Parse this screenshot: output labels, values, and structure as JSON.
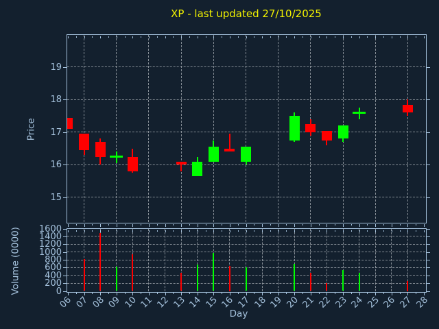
{
  "colors": {
    "background": "#13202e",
    "axis": "#a6c3de",
    "grid": "#9aa0a8",
    "up": "#00ff00",
    "down": "#ff0000",
    "title": "#f2f200"
  },
  "chart_data": {
    "type": "candlestick",
    "title": "XP - last updated 27/10/2025",
    "xlabel": "Day",
    "xlim": [
      5.94,
      28.06
    ],
    "xticks": [
      "06",
      "07",
      "08",
      "09",
      "10",
      "11",
      "12",
      "13",
      "14",
      "15",
      "16",
      "17",
      "18",
      "19",
      "20",
      "21",
      "22",
      "23",
      "24",
      "25",
      "26",
      "27",
      "28"
    ],
    "grid": true,
    "legend": "none",
    "panels": [
      {
        "ylabel": "Price",
        "ylim": [
          14.25,
          20.0
        ],
        "yticks": [
          15,
          16,
          17,
          18,
          19
        ],
        "grid_x_days": [
          7,
          9,
          11,
          13,
          15,
          17,
          19,
          21,
          23,
          25,
          27
        ]
      },
      {
        "ylabel": "Volume (0000)",
        "ylim": [
          0,
          1600
        ],
        "yticks": [
          1600,
          1400,
          1200,
          1000,
          800,
          600,
          400,
          200,
          0
        ],
        "grid_x_days": [
          7,
          8,
          9,
          10,
          11,
          12,
          13,
          14,
          15,
          16,
          17,
          18,
          19,
          20,
          21,
          22,
          23,
          24,
          25,
          26,
          27
        ]
      }
    ],
    "candles": [
      {
        "day": 6,
        "open": 17.45,
        "high": 17.45,
        "low": 17.1,
        "close": 17.1,
        "volume": null
      },
      {
        "day": 7,
        "open": 16.95,
        "high": 16.95,
        "low": 16.3,
        "close": 16.45,
        "volume": 820
      },
      {
        "day": 8,
        "open": 16.7,
        "high": 16.8,
        "low": 16.0,
        "close": 16.25,
        "volume": 1480
      },
      {
        "day": 9,
        "open": 16.25,
        "high": 16.4,
        "low": 16.05,
        "close": 16.25,
        "volume": 620
      },
      {
        "day": 10,
        "open": 16.25,
        "high": 16.5,
        "low": 15.75,
        "close": 15.8,
        "volume": 940
      },
      {
        "day": 13,
        "open": 16.1,
        "high": 16.1,
        "low": 15.8,
        "close": 16.0,
        "volume": 460
      },
      {
        "day": 14,
        "open": 15.65,
        "high": 16.25,
        "low": 15.65,
        "close": 16.1,
        "volume": 670
      },
      {
        "day": 15,
        "open": 16.1,
        "high": 16.75,
        "low": 16.1,
        "close": 16.55,
        "volume": 970
      },
      {
        "day": 16,
        "open": 16.5,
        "high": 16.95,
        "low": 16.4,
        "close": 16.4,
        "volume": 650
      },
      {
        "day": 17,
        "open": 16.1,
        "high": 16.55,
        "low": 16.0,
        "close": 16.55,
        "volume": 610
      },
      {
        "day": 20,
        "open": 16.75,
        "high": 17.6,
        "low": 16.7,
        "close": 17.5,
        "volume": 690
      },
      {
        "day": 21,
        "open": 17.25,
        "high": 17.4,
        "low": 16.9,
        "close": 17.0,
        "volume": 460
      },
      {
        "day": 22,
        "open": 17.05,
        "high": 17.05,
        "low": 16.6,
        "close": 16.75,
        "volume": 210
      },
      {
        "day": 23,
        "open": 16.8,
        "high": 17.2,
        "low": 16.7,
        "close": 17.2,
        "volume": 540
      },
      {
        "day": 24,
        "open": 17.6,
        "high": 17.75,
        "low": 17.4,
        "close": 17.6,
        "volume": 470
      },
      {
        "day": 27,
        "open": 17.85,
        "high": 18.0,
        "low": 17.5,
        "close": 17.6,
        "volume": 250
      }
    ]
  }
}
